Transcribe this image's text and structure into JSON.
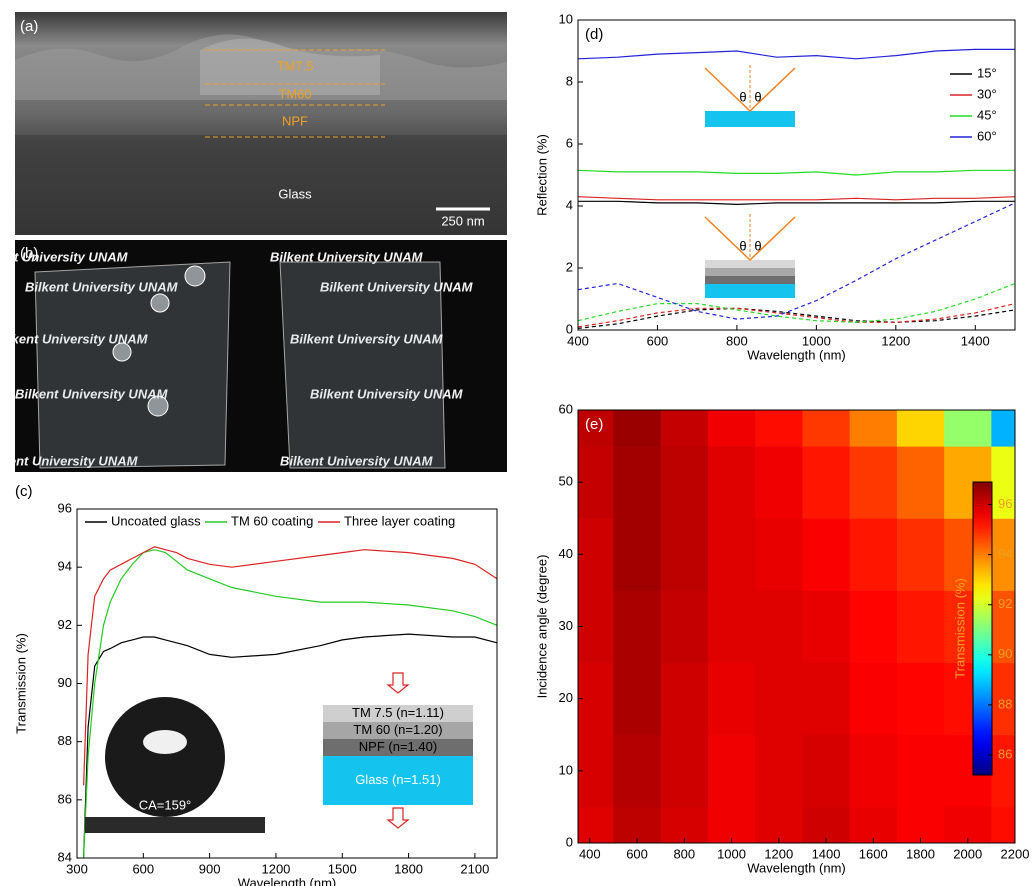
{
  "images": [
    {
      "label": "(a)",
      "layers": [
        "TM7.5",
        "TM60",
        "NPF"
      ],
      "substrate": "Glass",
      "scale_bar": "250 nm"
    },
    {
      "label": "(b)",
      "background_text": "Bilkent University UNAM"
    }
  ],
  "chart_data": [
    {
      "type": "line",
      "title": "(c)",
      "xlabel": "Wavelength (nm)",
      "ylabel": "Transmission (%)",
      "xlim": [
        300,
        2200
      ],
      "xticks": [
        300,
        600,
        900,
        1200,
        1500,
        1800,
        2100
      ],
      "ylim": [
        84,
        96
      ],
      "yticks": [
        84,
        86,
        88,
        90,
        92,
        94,
        96
      ],
      "grid": false,
      "legend": "upper center",
      "x": [
        330,
        350,
        380,
        420,
        450,
        500,
        550,
        600,
        650,
        700,
        750,
        800,
        900,
        1000,
        1200,
        1400,
        1500,
        1600,
        1800,
        2000,
        2100,
        2200
      ],
      "series": [
        {
          "name": "Uncoated glass",
          "color": "#000000",
          "values": [
            84,
            88.5,
            90.6,
            91.1,
            91.2,
            91.4,
            91.5,
            91.6,
            91.6,
            91.5,
            91.4,
            91.3,
            91.0,
            90.9,
            91.0,
            91.3,
            91.5,
            91.6,
            91.7,
            91.6,
            91.6,
            91.4
          ]
        },
        {
          "name": "TM 60 coating",
          "color": "#22cc22",
          "values": [
            84,
            87.5,
            90.0,
            92.0,
            92.8,
            93.6,
            94.1,
            94.5,
            94.6,
            94.5,
            94.2,
            93.9,
            93.6,
            93.3,
            93.0,
            92.8,
            92.8,
            92.8,
            92.7,
            92.5,
            92.3,
            92.0
          ]
        },
        {
          "name": "Three layer coating",
          "color": "#dd2222",
          "values": [
            86.5,
            91.0,
            93.0,
            93.6,
            93.9,
            94.1,
            94.3,
            94.5,
            94.7,
            94.6,
            94.5,
            94.3,
            94.1,
            94.0,
            94.2,
            94.4,
            94.5,
            94.6,
            94.5,
            94.3,
            94.1,
            93.6
          ]
        }
      ],
      "annotations": {
        "contact_angle": "CA=159°",
        "layers": [
          "TM 7.5 (n=1.11)",
          "TM 60 (n=1.20)",
          "NPF (n=1.40)",
          "Glass (n=1.51)"
        ]
      }
    },
    {
      "type": "line",
      "title": "(d)",
      "xlabel": "Wavelength (nm)",
      "ylabel": "Reflection (%)",
      "xlim": [
        400,
        1500
      ],
      "xticks": [
        400,
        600,
        800,
        1000,
        1200,
        1400
      ],
      "ylim": [
        0,
        10
      ],
      "yticks": [
        0,
        2,
        4,
        6,
        8,
        10
      ],
      "grid": false,
      "legend": "upper right",
      "x": [
        400,
        500,
        600,
        700,
        800,
        900,
        1000,
        1100,
        1200,
        1300,
        1400,
        1500
      ],
      "series": [
        {
          "name": "15°",
          "color": "#000000",
          "values": [
            4.15,
            4.15,
            4.1,
            4.1,
            4.05,
            4.1,
            4.1,
            4.1,
            4.1,
            4.1,
            4.15,
            4.15
          ]
        },
        {
          "name": "30°",
          "color": "#dd2222",
          "values": [
            4.3,
            4.25,
            4.2,
            4.2,
            4.2,
            4.2,
            4.2,
            4.25,
            4.2,
            4.25,
            4.25,
            4.3
          ]
        },
        {
          "name": "45°",
          "color": "#22dd22",
          "values": [
            5.15,
            5.1,
            5.1,
            5.1,
            5.05,
            5.05,
            5.1,
            5.0,
            5.1,
            5.1,
            5.15,
            5.15
          ]
        },
        {
          "name": "60°",
          "color": "#2222dd",
          "values": [
            8.75,
            8.8,
            8.9,
            8.95,
            9.0,
            8.8,
            8.85,
            8.75,
            8.85,
            9.0,
            9.05,
            9.05
          ]
        },
        {
          "color": "#000000",
          "linestyle": "dashed",
          "values": [
            0.05,
            0.2,
            0.45,
            0.65,
            0.7,
            0.6,
            0.45,
            0.3,
            0.25,
            0.3,
            0.45,
            0.65
          ]
        },
        {
          "color": "#dd2222",
          "linestyle": "dashed",
          "values": [
            0.1,
            0.3,
            0.55,
            0.7,
            0.7,
            0.55,
            0.4,
            0.25,
            0.25,
            0.35,
            0.55,
            0.85
          ]
        },
        {
          "color": "#22dd22",
          "linestyle": "dashed",
          "values": [
            0.3,
            0.6,
            0.85,
            0.85,
            0.65,
            0.45,
            0.3,
            0.25,
            0.35,
            0.6,
            1.0,
            1.5
          ]
        },
        {
          "color": "#2222dd",
          "linestyle": "dashed",
          "values": [
            1.3,
            1.5,
            1.05,
            0.6,
            0.35,
            0.45,
            0.95,
            1.6,
            2.3,
            2.9,
            3.5,
            4.1
          ]
        }
      ],
      "annotations": {
        "angle": "θ"
      }
    },
    {
      "type": "heatmap",
      "title": "(e)",
      "xlabel": "Wavelength (nm)",
      "ylabel": "Incidence angle (degree)",
      "xlim": [
        350,
        2200
      ],
      "xticks": [
        400,
        600,
        800,
        1000,
        1200,
        1400,
        1600,
        1800,
        2000,
        2200
      ],
      "ylim": [
        0,
        60
      ],
      "yticks": [
        0,
        10,
        20,
        30,
        40,
        50,
        60
      ],
      "grid": false,
      "x": [
        400,
        600,
        800,
        1000,
        1200,
        1400,
        1600,
        1800,
        2000,
        2200
      ],
      "y": [
        0,
        10,
        20,
        30,
        40,
        50,
        60
      ],
      "z": [
        [
          95.8,
          96.2,
          95.9,
          95.6,
          95.8,
          96.0,
          95.7,
          95.5,
          95.6,
          95.3
        ],
        [
          95.9,
          96.3,
          96.0,
          95.6,
          95.8,
          95.9,
          95.6,
          95.5,
          95.5,
          95.2
        ],
        [
          95.9,
          96.4,
          96.0,
          95.7,
          95.8,
          95.8,
          95.5,
          95.4,
          95.3,
          94.9
        ],
        [
          96.0,
          96.4,
          96.1,
          95.8,
          95.8,
          95.7,
          95.4,
          95.2,
          95.0,
          94.5
        ],
        [
          96.0,
          96.5,
          96.2,
          95.8,
          95.7,
          95.5,
          95.2,
          94.9,
          94.5,
          93.8
        ],
        [
          96.1,
          96.5,
          96.2,
          95.8,
          95.6,
          95.2,
          94.8,
          94.3,
          93.5,
          92.3
        ],
        [
          96.2,
          96.6,
          96.1,
          95.6,
          95.3,
          94.8,
          94.0,
          93.0,
          91.3,
          88.7
        ]
      ],
      "colormap": "jet",
      "zlim": [
        85.2,
        96.9
      ],
      "colorbar_ticks": [
        86,
        88,
        90,
        92,
        94,
        96
      ],
      "colorbar_label": "Transmission (%)"
    }
  ]
}
